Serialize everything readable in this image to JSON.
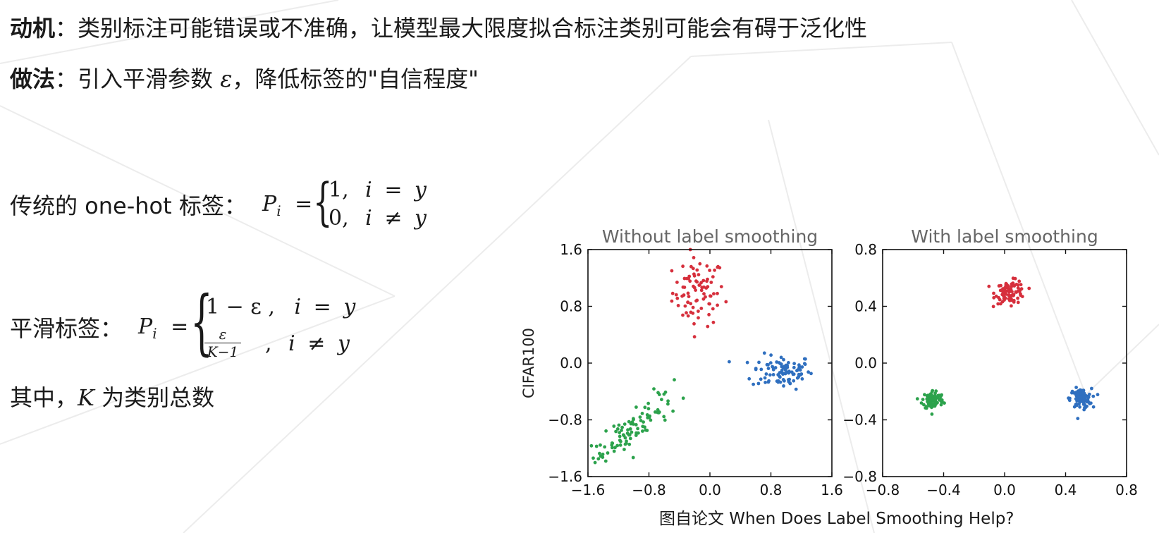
{
  "motivation": {
    "label": "动机",
    "sep": "：",
    "text": "类别标注可能错误或不准确，让模型最大限度拟合标注类别可能会有碍于泛化性"
  },
  "method": {
    "label": "做法",
    "sep": "：",
    "text_before": "引入平滑参数 ",
    "epsilon": "ε",
    "text_after": "，降低标签的\"自信程度\""
  },
  "onehot": {
    "label": "传统的 one-hot 标签：",
    "lhs": "P",
    "sub": "i",
    "eq": "=",
    "cases": [
      {
        "value": "1,",
        "var": "i",
        "op": "=",
        "rhs": "y"
      },
      {
        "value": "0,",
        "var": "i",
        "op": "≠",
        "rhs": "y"
      }
    ]
  },
  "smooth": {
    "label": "平滑标签：",
    "lhs": "P",
    "sub": "i",
    "eq": "=",
    "case1": {
      "value": "1 − ε ,",
      "var": "i",
      "op": "=",
      "rhs": "y"
    },
    "case2": {
      "numerator": "ε",
      "denominator": "K−1",
      "comma": ",",
      "var": "i",
      "op": "≠",
      "rhs": "y"
    }
  },
  "where": {
    "before": "其中，",
    "var": "K",
    "after": " 为类别总数"
  },
  "caption": "图自论文 When Does Label Smoothing Help?",
  "chart_data": [
    {
      "type": "scatter",
      "title": "Without label smoothing",
      "xlabel": "",
      "ylabel": "CIFAR100",
      "xlim": [
        -1.6,
        1.6
      ],
      "ylim": [
        -1.6,
        1.6
      ],
      "xticks": [
        "−1.6",
        "−0.8",
        "0.0",
        "0.8",
        "1.6"
      ],
      "yticks": [
        "1.6",
        "0.8",
        "0.0",
        "−0.8",
        "−1.6"
      ],
      "grid": false,
      "series": [
        {
          "color": "#d62f3c",
          "center": [
            -0.15,
            1.0
          ],
          "spread": [
            0.17,
            0.24
          ],
          "count": 85
        },
        {
          "color": "#2f6fbf",
          "center": [
            0.95,
            -0.12
          ],
          "spread": [
            0.2,
            0.12
          ],
          "count": 95
        },
        {
          "color": "#2ca24c",
          "center": [
            -1.05,
            -0.95
          ],
          "spread": [
            0.22,
            0.22
          ],
          "count": 100,
          "correlated": true
        }
      ]
    },
    {
      "type": "scatter",
      "title": "With label smoothing",
      "xlabel": "",
      "ylabel": "",
      "xlim": [
        -0.8,
        0.8
      ],
      "ylim": [
        -0.8,
        0.8
      ],
      "xticks": [
        "−0.8",
        "−0.4",
        "0.0",
        "0.4",
        "0.8"
      ],
      "yticks": [
        "0.8",
        "0.4",
        "0.0",
        "−0.4",
        "−0.8"
      ],
      "grid": false,
      "series": [
        {
          "color": "#d62f3c",
          "center": [
            0.04,
            0.5
          ],
          "spread": [
            0.05,
            0.04
          ],
          "count": 90
        },
        {
          "color": "#2f6fbf",
          "center": [
            0.5,
            -0.25
          ],
          "spread": [
            0.035,
            0.035
          ],
          "count": 90
        },
        {
          "color": "#2ca24c",
          "center": [
            -0.47,
            -0.26
          ],
          "spread": [
            0.035,
            0.035
          ],
          "count": 90
        }
      ]
    }
  ]
}
